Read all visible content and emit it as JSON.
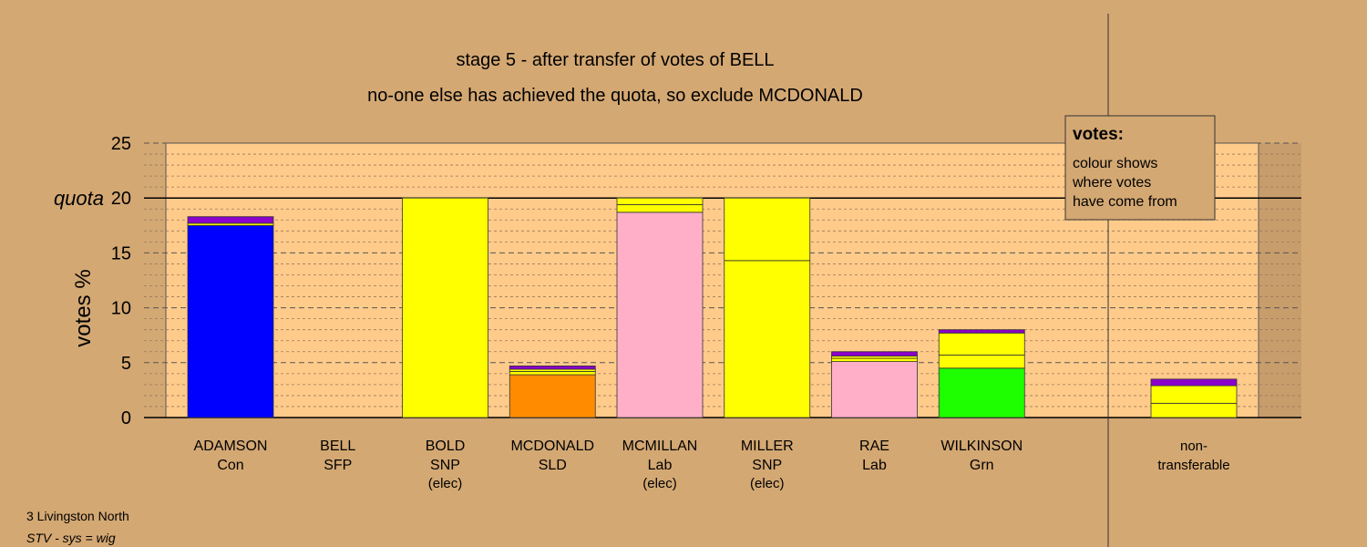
{
  "chart_data": {
    "type": "bar",
    "stacked": true,
    "title": "stage 5 - after transfer of votes of BELL",
    "subtitle": "no-one else has achieved the quota, so exclude MCDONALD",
    "ylabel": "votes %",
    "ylim": [
      0,
      25
    ],
    "yticks": [
      0,
      5,
      10,
      15,
      20,
      25
    ],
    "quota": 20,
    "quota_label": "quota",
    "colors": {
      "background": "#d4a873",
      "plot": "#ffcb8b",
      "purple": "#8b00cc",
      "yellow": "#ffff00",
      "blue": "#0000ff",
      "orange": "#ff8c00",
      "pink": "#ffb0c8",
      "green": "#1eff00"
    },
    "legend": {
      "title": "votes:",
      "lines": [
        "colour shows",
        "where votes",
        "have come from"
      ]
    },
    "categories": [
      {
        "name": "ADAMSON",
        "party": "Con",
        "note": "",
        "segments": [
          {
            "color": "blue",
            "value": 17.5
          },
          {
            "color": "yellow",
            "value": 0.2
          },
          {
            "color": "purple",
            "value": 0.6
          }
        ]
      },
      {
        "name": "BELL",
        "party": "SFP",
        "note": "",
        "segments": []
      },
      {
        "name": "BOLD",
        "party": "SNP",
        "note": "(elec)",
        "segments": [
          {
            "color": "yellow",
            "value": 20
          }
        ]
      },
      {
        "name": "MCDONALD",
        "party": "SLD",
        "note": "",
        "segments": [
          {
            "color": "orange",
            "value": 3.9
          },
          {
            "color": "yellow",
            "value": 0.3
          },
          {
            "color": "yellow",
            "value": 0.2
          },
          {
            "color": "purple",
            "value": 0.3
          }
        ]
      },
      {
        "name": "MCMILLAN",
        "party": "Lab",
        "note": "(elec)",
        "segments": [
          {
            "color": "pink",
            "value": 18.7
          },
          {
            "color": "yellow",
            "value": 0.7
          },
          {
            "color": "yellow",
            "value": 0.6
          }
        ]
      },
      {
        "name": "MILLER",
        "party": "SNP",
        "note": "(elec)",
        "segments": [
          {
            "color": "yellow",
            "value": 14.3
          },
          {
            "color": "yellow",
            "value": 5.7
          }
        ]
      },
      {
        "name": "RAE",
        "party": "Lab",
        "note": "",
        "segments": [
          {
            "color": "pink",
            "value": 5.1
          },
          {
            "color": "yellow",
            "value": 0.3
          },
          {
            "color": "yellow",
            "value": 0.2
          },
          {
            "color": "purple",
            "value": 0.4
          }
        ]
      },
      {
        "name": "WILKINSON",
        "party": "Grn",
        "note": "",
        "segments": [
          {
            "color": "green",
            "value": 4.5
          },
          {
            "color": "yellow",
            "value": 1.2
          },
          {
            "color": "yellow",
            "value": 2.0
          },
          {
            "color": "purple",
            "value": 0.3
          }
        ]
      },
      {
        "name": "non-",
        "party": "transferable",
        "note": "",
        "nontransferable": true,
        "segments": [
          {
            "color": "yellow",
            "value": 1.3
          },
          {
            "color": "yellow",
            "value": 1.6
          },
          {
            "color": "purple",
            "value": 0.6
          }
        ]
      }
    ]
  },
  "footer": {
    "constituency": "3 Livingston North",
    "system": "STV - sys = wig"
  }
}
